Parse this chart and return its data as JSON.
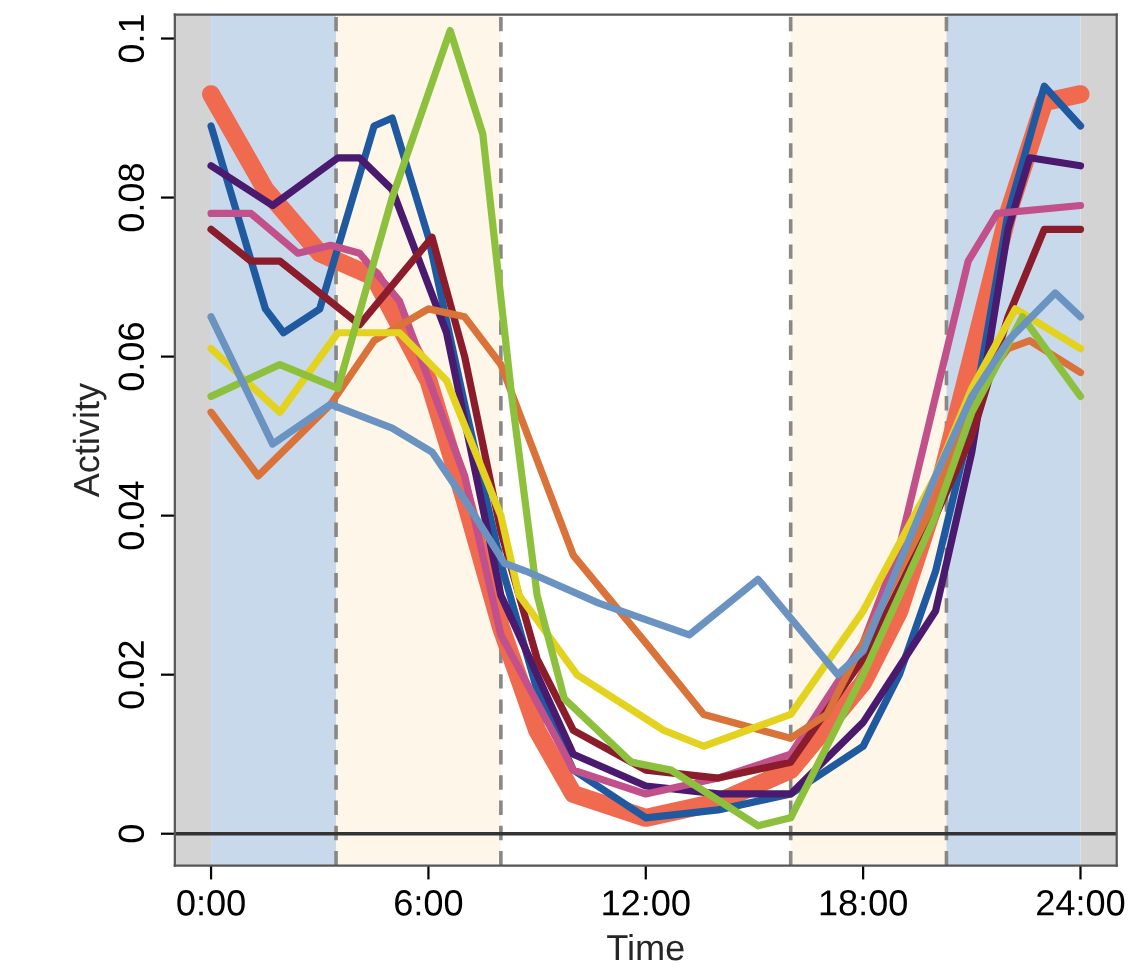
{
  "chart_data": {
    "type": "line",
    "xlabel": "Time",
    "ylabel": "Activity",
    "xlim": [
      -1,
      25
    ],
    "ylim": [
      -0.004,
      0.103
    ],
    "xticks": [
      {
        "value": 0,
        "label": "0:00"
      },
      {
        "value": 6,
        "label": "6:00"
      },
      {
        "value": 12,
        "label": "12:00"
      },
      {
        "value": 18,
        "label": "18:00"
      },
      {
        "value": 24,
        "label": "24:00"
      }
    ],
    "yticks": [
      0,
      0.02,
      0.04,
      0.06,
      0.08,
      0.1
    ],
    "grid": false,
    "legend": false,
    "marker": "none",
    "line_style": "solid",
    "bands": [
      {
        "axis": "x",
        "from": -1,
        "to": 0,
        "color": "#d3d3d3"
      },
      {
        "axis": "x",
        "from": 0,
        "to": 3.45,
        "color": "#c9d9ec"
      },
      {
        "axis": "x",
        "from": 3.45,
        "to": 8,
        "color": "#fdf6e9"
      },
      {
        "axis": "x",
        "from": 16,
        "to": 20.3,
        "color": "#fdf6e9"
      },
      {
        "axis": "x",
        "from": 20.3,
        "to": 24,
        "color": "#c9d9ec"
      },
      {
        "axis": "x",
        "from": 24,
        "to": 25,
        "color": "#d3d3d3"
      }
    ],
    "ref_lines": [
      {
        "axis": "x",
        "value": 3.45,
        "color": "#888888",
        "line_style": "dashed"
      },
      {
        "axis": "x",
        "value": 8,
        "color": "#888888",
        "line_style": "dashed"
      },
      {
        "axis": "x",
        "value": 16,
        "color": "#888888",
        "line_style": "dashed"
      },
      {
        "axis": "x",
        "value": 20.3,
        "color": "#888888",
        "line_style": "dashed"
      },
      {
        "axis": "y",
        "value": 0,
        "color": "#333333",
        "line_style": "solid"
      }
    ],
    "series": [
      {
        "color": "#f06a50",
        "x": [
          0,
          1.5,
          3,
          4.5,
          6,
          7,
          8,
          9,
          10,
          12,
          14,
          16,
          18,
          19,
          20,
          21,
          22,
          23,
          24
        ],
        "values": [
          0.093,
          0.081,
          0.073,
          0.07,
          0.057,
          0.042,
          0.026,
          0.013,
          0.005,
          0.002,
          0.004,
          0.008,
          0.019,
          0.028,
          0.042,
          0.06,
          0.078,
          0.092,
          0.093
        ]
      },
      {
        "color": "#1f5aa0",
        "x": [
          0,
          1.5,
          2,
          3,
          4.5,
          5,
          6,
          7,
          8,
          9,
          10,
          12,
          14,
          16,
          18,
          19,
          20,
          21,
          22,
          23,
          24
        ],
        "values": [
          0.089,
          0.066,
          0.063,
          0.066,
          0.089,
          0.09,
          0.075,
          0.054,
          0.034,
          0.018,
          0.008,
          0.002,
          0.003,
          0.005,
          0.011,
          0.02,
          0.033,
          0.052,
          0.078,
          0.094,
          0.089
        ]
      },
      {
        "color": "#4a1a6e",
        "x": [
          0,
          1.7,
          3.5,
          4.1,
          5,
          6.5,
          8,
          10,
          12,
          14,
          16,
          18,
          20,
          21,
          22,
          22.6,
          24
        ],
        "values": [
          0.084,
          0.079,
          0.085,
          0.085,
          0.081,
          0.063,
          0.03,
          0.01,
          0.006,
          0.005,
          0.005,
          0.014,
          0.028,
          0.048,
          0.076,
          0.085,
          0.084
        ]
      },
      {
        "color": "#c2508a",
        "x": [
          0,
          1.1,
          2.4,
          3.3,
          4.1,
          5.2,
          7,
          8,
          10,
          12,
          14,
          16,
          18,
          19,
          20,
          20.9,
          21.7,
          24
        ],
        "values": [
          0.078,
          0.078,
          0.073,
          0.074,
          0.073,
          0.067,
          0.045,
          0.025,
          0.008,
          0.005,
          0.007,
          0.01,
          0.024,
          0.036,
          0.055,
          0.072,
          0.078,
          0.079
        ]
      },
      {
        "color": "#8b1c2c",
        "x": [
          0,
          1.1,
          1.9,
          4.1,
          6.1,
          7,
          8,
          9,
          10,
          12,
          14,
          16,
          18,
          20,
          21,
          22,
          23,
          24
        ],
        "values": [
          0.076,
          0.072,
          0.072,
          0.064,
          0.075,
          0.06,
          0.038,
          0.022,
          0.013,
          0.008,
          0.007,
          0.009,
          0.022,
          0.04,
          0.05,
          0.065,
          0.076,
          0.076
        ]
      },
      {
        "color": "#d9733a",
        "x": [
          0,
          1.3,
          3.3,
          4.5,
          6,
          7,
          8,
          9,
          10,
          12,
          13.6,
          16,
          17,
          18,
          20,
          21,
          22,
          22.6,
          24
        ],
        "values": [
          0.053,
          0.045,
          0.054,
          0.062,
          0.066,
          0.065,
          0.059,
          0.047,
          0.035,
          0.024,
          0.015,
          0.012,
          0.015,
          0.024,
          0.042,
          0.055,
          0.061,
          0.062,
          0.058
        ]
      },
      {
        "color": "#e3d21e",
        "x": [
          0,
          1.9,
          3.5,
          5.2,
          6.5,
          8,
          8.5,
          10.1,
          12.5,
          13.6,
          16,
          18,
          20,
          21,
          22.2,
          24
        ],
        "values": [
          0.061,
          0.053,
          0.063,
          0.063,
          0.057,
          0.04,
          0.03,
          0.02,
          0.013,
          0.011,
          0.015,
          0.028,
          0.045,
          0.056,
          0.066,
          0.061
        ]
      },
      {
        "color": "#8dc03c",
        "x": [
          0,
          1.9,
          3.5,
          5,
          6.6,
          7.5,
          8.3,
          9,
          9.75,
          11.6,
          12.7,
          15.1,
          16,
          18,
          20,
          21,
          22.4,
          24
        ],
        "values": [
          0.055,
          0.059,
          0.056,
          0.08,
          0.101,
          0.088,
          0.055,
          0.03,
          0.017,
          0.009,
          0.008,
          0.001,
          0.002,
          0.02,
          0.04,
          0.053,
          0.065,
          0.055
        ]
      },
      {
        "color": "#6b93c1",
        "x": [
          0,
          1.7,
          3.3,
          5,
          6.1,
          7,
          8.1,
          8.7,
          10.7,
          13.2,
          15.1,
          17.3,
          18,
          20,
          21,
          22,
          23.3,
          24
        ],
        "values": [
          0.065,
          0.049,
          0.054,
          0.051,
          0.048,
          0.042,
          0.034,
          0.033,
          0.029,
          0.025,
          0.032,
          0.02,
          0.023,
          0.045,
          0.055,
          0.062,
          0.068,
          0.065
        ]
      }
    ]
  }
}
